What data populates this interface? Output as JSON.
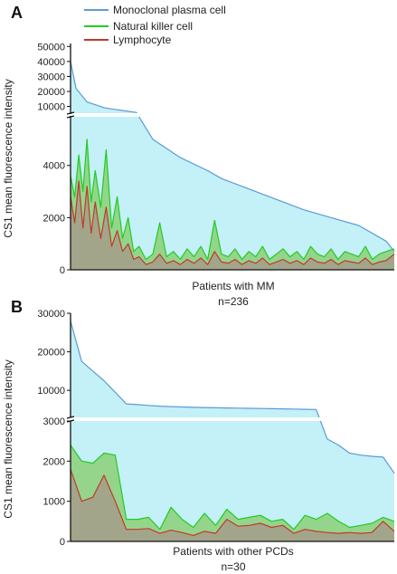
{
  "chart_data": [
    {
      "type": "area",
      "panel_label": "A",
      "ylabel": "CS1 mean fluorescence intensity",
      "xlabel": "Patients with MM",
      "n_label": "n=236",
      "broken_y_axis": true,
      "y_segments": [
        {
          "ylim": [
            0,
            5900
          ],
          "ticks": [
            0,
            2000,
            4000
          ]
        },
        {
          "ylim": [
            4900,
            52000
          ],
          "ticks": [
            10000,
            20000,
            30000,
            40000,
            50000
          ]
        }
      ],
      "legend": {
        "position": "top-left",
        "entries": [
          {
            "name": "Monoclonal plasma cell",
            "color": "#5b9bd5"
          },
          {
            "name": "Natural killer cell",
            "color": "#22cc22"
          },
          {
            "name": "Lymphocyte",
            "color": "#c0392b"
          }
        ]
      },
      "fill_colors": {
        "plasma": "#c4f0f7",
        "nk": "#8fd27e",
        "lymph": "#a4a08a"
      },
      "series": [
        {
          "name": "Monoclonal plasma cell",
          "x": [
            0,
            4,
            12,
            25,
            40,
            48,
            60,
            80,
            100,
            110,
            130,
            150,
            170,
            190,
            210,
            230,
            236
          ],
          "values": [
            40000,
            22000,
            13000,
            9000,
            7000,
            6000,
            5000,
            4300,
            3800,
            3500,
            3100,
            2700,
            2300,
            2000,
            1700,
            1100,
            700
          ]
        },
        {
          "name": "Natural killer cell",
          "x": [
            0,
            3,
            6,
            9,
            12,
            15,
            18,
            22,
            26,
            30,
            34,
            38,
            42,
            46,
            50,
            55,
            60,
            65,
            70,
            75,
            80,
            85,
            90,
            95,
            100,
            105,
            110,
            115,
            120,
            125,
            130,
            135,
            140,
            145,
            150,
            155,
            160,
            165,
            170,
            175,
            180,
            185,
            190,
            195,
            200,
            205,
            210,
            215,
            220,
            225,
            230,
            236
          ],
          "values": [
            3600,
            2800,
            4400,
            3000,
            5000,
            2600,
            3800,
            2400,
            4600,
            1600,
            2800,
            1200,
            2000,
            700,
            900,
            400,
            600,
            1800,
            500,
            700,
            400,
            800,
            500,
            900,
            400,
            1900,
            600,
            500,
            800,
            400,
            700,
            500,
            900,
            400,
            600,
            800,
            500,
            700,
            400,
            900,
            600,
            500,
            800,
            400,
            700,
            600,
            500,
            900,
            400,
            600,
            700,
            800
          ]
        },
        {
          "name": "Lymphocyte",
          "x": [
            0,
            3,
            6,
            9,
            12,
            15,
            18,
            22,
            26,
            30,
            34,
            38,
            42,
            46,
            50,
            55,
            60,
            65,
            70,
            75,
            80,
            85,
            90,
            95,
            100,
            105,
            110,
            115,
            120,
            125,
            130,
            135,
            140,
            145,
            150,
            155,
            160,
            165,
            170,
            175,
            180,
            185,
            190,
            195,
            200,
            205,
            210,
            215,
            220,
            225,
            230,
            236
          ],
          "values": [
            2800,
            1800,
            3400,
            1600,
            3200,
            1400,
            2600,
            1200,
            2400,
            900,
            1500,
            700,
            1000,
            400,
            500,
            200,
            300,
            600,
            250,
            350,
            200,
            400,
            250,
            450,
            200,
            700,
            300,
            250,
            400,
            200,
            350,
            250,
            450,
            200,
            300,
            400,
            250,
            350,
            200,
            450,
            300,
            250,
            400,
            200,
            350,
            300,
            250,
            450,
            200,
            300,
            350,
            600
          ]
        }
      ]
    },
    {
      "type": "area",
      "panel_label": "B",
      "ylabel": "CS1 mean fluorescence intensity",
      "xlabel": "Patients with other PCDs",
      "n_label": "n=30",
      "broken_y_axis": true,
      "y_segments": [
        {
          "ylim": [
            0,
            3000
          ],
          "ticks": [
            0,
            1000,
            2000,
            3000
          ]
        },
        {
          "ylim": [
            3000,
            30000
          ],
          "ticks": [
            10000,
            20000,
            30000
          ]
        }
      ],
      "fill_colors": {
        "plasma": "#c4f0f7",
        "nk": "#8fd27e",
        "lymph": "#a4a08a"
      },
      "series": [
        {
          "name": "Monoclonal plasma cell",
          "x": [
            1,
            2,
            3,
            4,
            5,
            6,
            7,
            8,
            9,
            10,
            11,
            12,
            13,
            14,
            15,
            16,
            17,
            18,
            19,
            20,
            21,
            22,
            23,
            24,
            25,
            26,
            27,
            28,
            29,
            30
          ],
          "values": [
            28000,
            17500,
            15000,
            12500,
            9500,
            6500,
            6300,
            6100,
            5900,
            5800,
            5700,
            5600,
            5550,
            5500,
            5450,
            5400,
            5350,
            5300,
            5250,
            5200,
            5150,
            5100,
            5050,
            2550,
            2400,
            2200,
            2150,
            2120,
            2100,
            1700
          ]
        },
        {
          "name": "Natural killer cell",
          "x": [
            1,
            2,
            3,
            4,
            5,
            6,
            7,
            8,
            9,
            10,
            11,
            12,
            13,
            14,
            15,
            16,
            17,
            18,
            19,
            20,
            21,
            22,
            23,
            24,
            25,
            26,
            27,
            28,
            29,
            30
          ],
          "values": [
            2400,
            2000,
            1950,
            2200,
            2150,
            550,
            550,
            600,
            300,
            850,
            550,
            350,
            700,
            400,
            800,
            550,
            600,
            650,
            500,
            550,
            300,
            650,
            550,
            700,
            500,
            350,
            400,
            450,
            600,
            500
          ]
        },
        {
          "name": "Lymphocyte",
          "x": [
            1,
            2,
            3,
            4,
            5,
            6,
            7,
            8,
            9,
            10,
            11,
            12,
            13,
            14,
            15,
            16,
            17,
            18,
            19,
            20,
            21,
            22,
            23,
            24,
            25,
            26,
            27,
            28,
            29,
            30
          ],
          "values": [
            1800,
            1000,
            1100,
            1650,
            1000,
            300,
            300,
            320,
            200,
            280,
            220,
            150,
            250,
            200,
            550,
            380,
            400,
            450,
            350,
            400,
            200,
            300,
            250,
            220,
            200,
            220,
            200,
            220,
            500,
            250
          ]
        }
      ]
    }
  ]
}
